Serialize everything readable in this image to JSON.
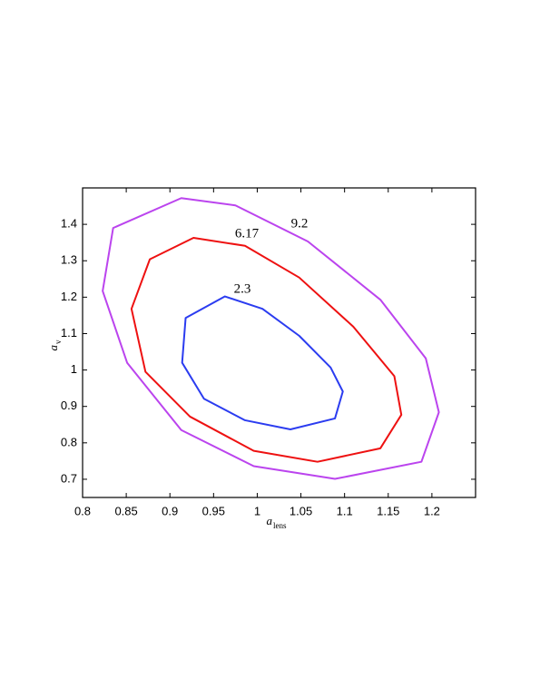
{
  "chart_data": {
    "type": "contour",
    "xlabel": "a",
    "xlabel_sub": "lens",
    "ylabel": "a",
    "ylabel_sub": "v",
    "xlim": [
      0.8,
      1.25
    ],
    "ylim": [
      0.65,
      1.5
    ],
    "xticks": [
      0.8,
      0.85,
      0.9,
      0.95,
      1,
      1.05,
      1.1,
      1.15,
      1.2
    ],
    "yticks": [
      0.7,
      0.8,
      0.9,
      1,
      1.1,
      1.2,
      1.3,
      1.4
    ],
    "series": [
      {
        "name": "2.3",
        "color": "#2b3cf0",
        "x": [
          0.963,
          1.006,
          1.048,
          1.084,
          1.098,
          1.089,
          1.038,
          0.986,
          0.939,
          0.914,
          0.918
        ],
        "y": [
          1.202,
          1.168,
          1.094,
          1.007,
          0.941,
          0.867,
          0.837,
          0.862,
          0.921,
          1.02,
          1.143
        ]
      },
      {
        "name": "6.17",
        "color": "#ee1111",
        "x": [
          0.927,
          0.986,
          1.048,
          1.11,
          1.157,
          1.165,
          1.141,
          1.069,
          0.996,
          0.923,
          0.872,
          0.856,
          0.877
        ],
        "y": [
          1.363,
          1.341,
          1.254,
          1.119,
          0.983,
          0.877,
          0.785,
          0.748,
          0.778,
          0.872,
          0.995,
          1.168,
          1.304
        ]
      },
      {
        "name": "9.2",
        "color": "#bb44ee",
        "x": [
          0.913,
          0.975,
          1.058,
          1.141,
          1.193,
          1.208,
          1.188,
          1.089,
          0.996,
          0.913,
          0.851,
          0.823,
          0.835
        ],
        "y": [
          1.472,
          1.452,
          1.353,
          1.193,
          1.032,
          0.884,
          0.748,
          0.701,
          0.736,
          0.835,
          1.02,
          1.217,
          1.39
        ]
      }
    ]
  }
}
